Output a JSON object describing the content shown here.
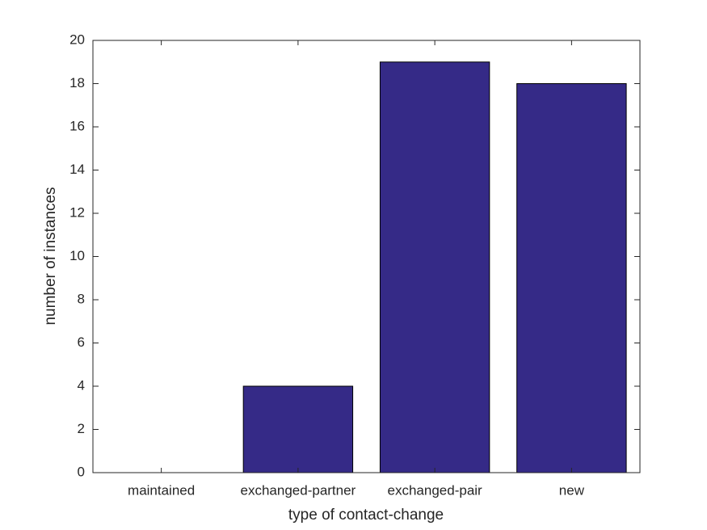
{
  "chart_data": {
    "type": "bar",
    "xlabel": "type of contact-change",
    "ylabel": "number of instances",
    "categories": [
      "maintained",
      "exchanged-partner",
      "exchanged-pair",
      "new"
    ],
    "values": [
      0,
      4,
      19,
      18
    ],
    "color": "#352a87",
    "ylim": [
      0,
      20
    ],
    "yticks": [
      0,
      2,
      4,
      6,
      8,
      10,
      12,
      14,
      16,
      18,
      20
    ],
    "grid": false
  }
}
